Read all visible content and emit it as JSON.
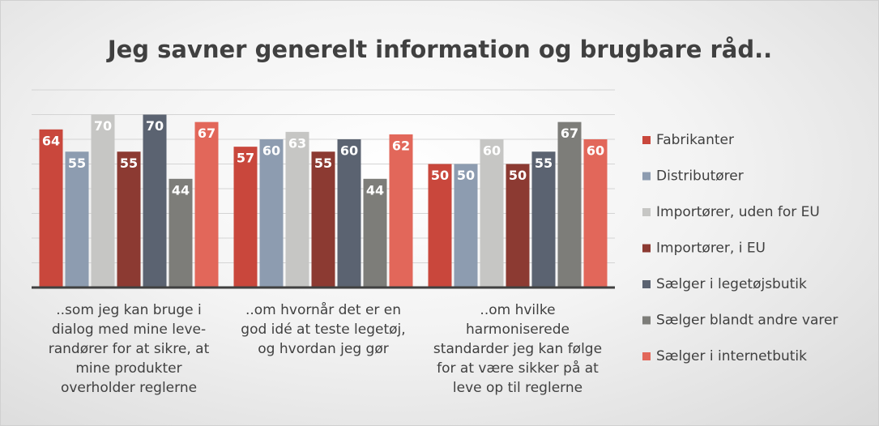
{
  "chart_data": {
    "type": "bar",
    "title": "Jeg savner generelt information og brugbare råd..",
    "categories": [
      "..som jeg kan bruge i\ndialog med mine leve-\nrandører for at sikre, at\nmine produkter\noverholder reglerne",
      "..om hvornår det er en\ngod idé at teste legetøj,\nog hvordan jeg gør",
      "..om hvilke\nharmoniserede\nstandarder jeg kan følge\nfor at være sikker på at\nleve op til reglerne"
    ],
    "series": [
      {
        "name": "Fabrikanter",
        "color": "#c9473c",
        "values": [
          64,
          57,
          50
        ]
      },
      {
        "name": "Distributører",
        "color": "#8d9cb0",
        "values": [
          55,
          60,
          50
        ]
      },
      {
        "name": "Importører, uden for EU",
        "color": "#c6c6c4",
        "values": [
          70,
          63,
          60
        ]
      },
      {
        "name": "Importører, i EU",
        "color": "#8c3a32",
        "values": [
          55,
          55,
          50
        ]
      },
      {
        "name": "Sælger i legetøjsbutik",
        "color": "#5b6371",
        "values": [
          70,
          60,
          55
        ]
      },
      {
        "name": "Sælger blandt andre varer",
        "color": "#7d7d79",
        "values": [
          44,
          44,
          67
        ]
      },
      {
        "name": "Sælger i internetbutik",
        "color": "#e2675a",
        "values": [
          67,
          62,
          60
        ]
      }
    ],
    "ylim": [
      0,
      80
    ],
    "yticks": [
      0,
      10,
      20,
      30,
      40,
      50,
      60,
      70,
      80
    ],
    "grid": true,
    "legend": "right"
  }
}
